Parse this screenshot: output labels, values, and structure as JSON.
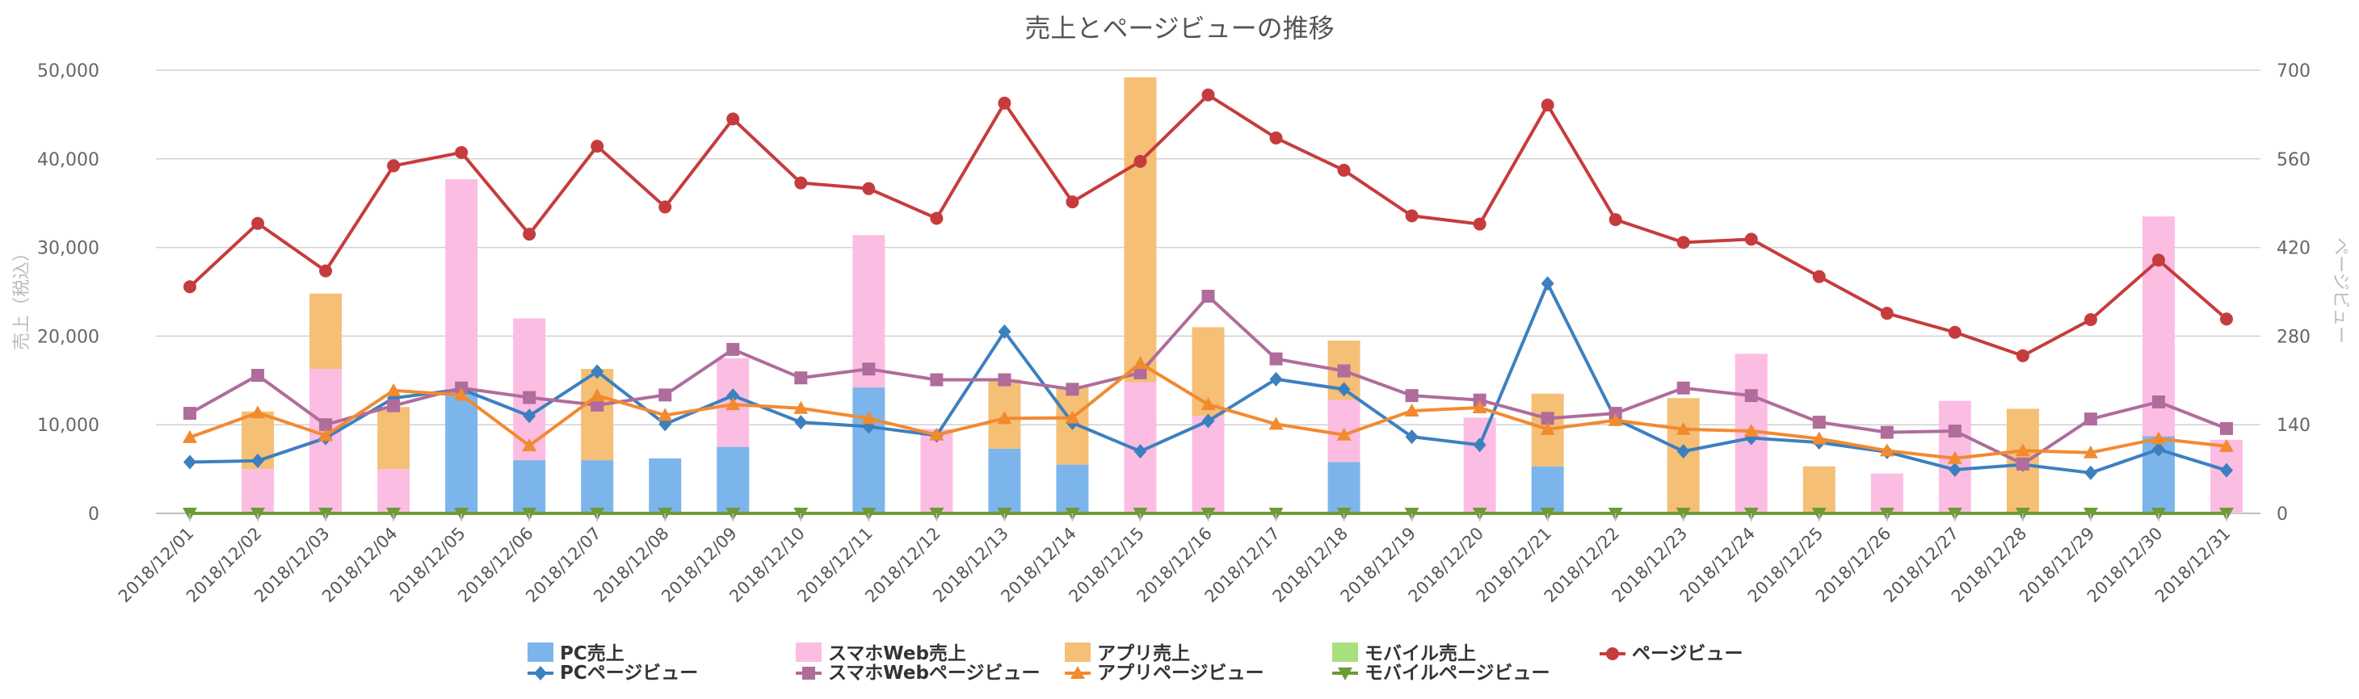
{
  "chart_data": {
    "type": "bar",
    "title": "売上とページビューの推移",
    "ylabel": "売上（税込）",
    "y2label": "ページビュー",
    "ylim": [
      0,
      50000
    ],
    "y2lim": [
      0,
      700
    ],
    "yticks": [
      "0",
      "10,000",
      "20,000",
      "30,000",
      "40,000",
      "50,000"
    ],
    "y2ticks": [
      "0",
      "140",
      "280",
      "420",
      "560",
      "700"
    ],
    "grid": true,
    "legend": "bottom",
    "categories": [
      "2018/12/01",
      "2018/12/02",
      "2018/12/03",
      "2018/12/04",
      "2018/12/05",
      "2018/12/06",
      "2018/12/07",
      "2018/12/08",
      "2018/12/09",
      "2018/12/10",
      "2018/12/11",
      "2018/12/12",
      "2018/12/13",
      "2018/12/14",
      "2018/12/15",
      "2018/12/16",
      "2018/12/17",
      "2018/12/18",
      "2018/12/19",
      "2018/12/20",
      "2018/12/21",
      "2018/12/22",
      "2018/12/23",
      "2018/12/24",
      "2018/12/25",
      "2018/12/26",
      "2018/12/27",
      "2018/12/28",
      "2018/12/29",
      "2018/12/30",
      "2018/12/31"
    ],
    "bar_series": [
      {
        "name": "PC売上",
        "color": "#7cb5ec",
        "values": [
          0,
          0,
          0,
          0,
          14000,
          6000,
          6000,
          6200,
          7500,
          0,
          14200,
          0,
          7300,
          5500,
          0,
          0,
          0,
          5800,
          0,
          0,
          5300,
          0,
          0,
          0,
          0,
          0,
          0,
          0,
          0,
          8700,
          0
        ]
      },
      {
        "name": "スマホWeb売上",
        "color": "#fcbde3",
        "values": [
          0,
          5000,
          16300,
          5000,
          23700,
          16000,
          0,
          0,
          10000,
          0,
          17200,
          9500,
          0,
          0,
          14800,
          11000,
          0,
          7000,
          0,
          10800,
          0,
          0,
          0,
          18000,
          0,
          4500,
          12700,
          0,
          0,
          24800,
          8300
        ]
      },
      {
        "name": "アプリ売上",
        "color": "#f5bf75",
        "values": [
          0,
          6500,
          8500,
          7000,
          0,
          0,
          10300,
          0,
          0,
          0,
          0,
          0,
          7800,
          8800,
          34400,
          10000,
          0,
          6700,
          0,
          0,
          8200,
          0,
          13000,
          0,
          5300,
          0,
          0,
          11800,
          0,
          0,
          0
        ]
      },
      {
        "name": "モバイル売上",
        "color": "#a6e07f",
        "values": [
          0,
          0,
          0,
          0,
          0,
          0,
          0,
          0,
          0,
          0,
          0,
          0,
          0,
          0,
          0,
          0,
          0,
          0,
          0,
          0,
          0,
          0,
          0,
          0,
          0,
          0,
          0,
          0,
          0,
          0,
          0
        ]
      }
    ],
    "line_series": [
      {
        "name": "PCページビュー",
        "color": "#3c80bf",
        "marker": "diamond",
        "values": [
          81,
          83,
          119,
          182,
          196,
          154,
          224,
          141,
          186,
          144,
          137,
          123,
          287,
          143,
          98,
          146,
          212,
          196,
          121,
          108,
          363,
          149,
          98,
          119,
          112,
          97,
          69,
          77,
          64,
          101,
          68
        ]
      },
      {
        "name": "スマホWebページビュー",
        "color": "#b06c9b",
        "marker": "square",
        "values": [
          158,
          218,
          140,
          170,
          198,
          183,
          171,
          187,
          259,
          214,
          228,
          211,
          211,
          196,
          222,
          343,
          244,
          225,
          186,
          179,
          150,
          158,
          198,
          186,
          144,
          128,
          130,
          78,
          149,
          176,
          134
        ]
      },
      {
        "name": "アプリページビュー",
        "color": "#f28a30",
        "marker": "triangle",
        "values": [
          120,
          159,
          123,
          194,
          187,
          107,
          186,
          155,
          172,
          166,
          150,
          124,
          150,
          151,
          237,
          172,
          141,
          124,
          162,
          167,
          133,
          147,
          133,
          130,
          118,
          99,
          87,
          99,
          96,
          118,
          106
        ]
      },
      {
        "name": "モバイルページビュー",
        "color": "#6e9a37",
        "marker": "triangle-down",
        "values": [
          0,
          0,
          0,
          0,
          0,
          0,
          0,
          0,
          0,
          0,
          0,
          0,
          0,
          0,
          0,
          0,
          0,
          0,
          0,
          0,
          0,
          0,
          0,
          0,
          0,
          0,
          0,
          0,
          0,
          0,
          0
        ]
      },
      {
        "name": "ページビュー",
        "color": "#c63c3c",
        "marker": "circle",
        "values": [
          358,
          458,
          383,
          549,
          570,
          441,
          580,
          484,
          623,
          522,
          513,
          466,
          648,
          492,
          556,
          661,
          593,
          542,
          470,
          457,
          645,
          464,
          428,
          433,
          374,
          316,
          286,
          249,
          306,
          400,
          307
        ]
      }
    ]
  }
}
